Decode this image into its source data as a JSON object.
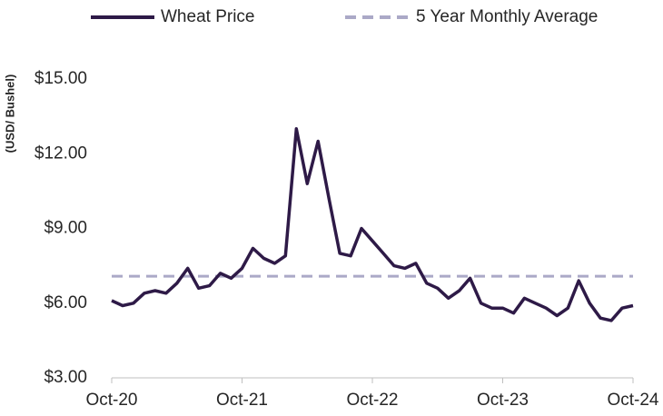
{
  "chart_data": {
    "type": "line",
    "y_axis_label": "(USD/ Bushel)",
    "x": [
      "Oct-20",
      "Nov-20",
      "Dec-20",
      "Jan-21",
      "Feb-21",
      "Mar-21",
      "Apr-21",
      "May-21",
      "Jun-21",
      "Jul-21",
      "Aug-21",
      "Sep-21",
      "Oct-21",
      "Nov-21",
      "Dec-21",
      "Jan-22",
      "Feb-22",
      "Mar-22",
      "Apr-22",
      "May-22",
      "Jun-22",
      "Jul-22",
      "Aug-22",
      "Sep-22",
      "Oct-22",
      "Nov-22",
      "Dec-22",
      "Jan-23",
      "Feb-23",
      "Mar-23",
      "Apr-23",
      "May-23",
      "Jun-23",
      "Jul-23",
      "Aug-23",
      "Sep-23",
      "Oct-23",
      "Nov-23",
      "Dec-23",
      "Jan-24",
      "Feb-24",
      "Mar-24",
      "Apr-24",
      "May-24",
      "Jun-24",
      "Jul-24",
      "Aug-24",
      "Sep-24",
      "Oct-24"
    ],
    "series": [
      {
        "name": "Wheat Price",
        "color": "#2e1a47",
        "values": [
          6.1,
          5.9,
          6.0,
          6.4,
          6.5,
          6.4,
          6.8,
          7.4,
          6.6,
          6.7,
          7.2,
          7.0,
          7.4,
          8.2,
          7.8,
          7.6,
          7.9,
          13.0,
          10.8,
          12.5,
          10.2,
          8.0,
          7.9,
          9.0,
          8.5,
          8.0,
          7.5,
          7.4,
          7.6,
          6.8,
          6.6,
          6.2,
          6.5,
          7.0,
          6.0,
          5.8,
          5.8,
          5.6,
          6.2,
          6.0,
          5.8,
          5.5,
          5.8,
          6.9,
          6.0,
          5.4,
          5.3,
          5.8,
          5.9
        ]
      }
    ],
    "reference_line": {
      "name": "5 Year Monthly Average",
      "value": 7.08,
      "color": "#aba9c7",
      "dashed": true
    },
    "xticks": [
      "Oct-20",
      "Oct-21",
      "Oct-22",
      "Oct-23",
      "Oct-24"
    ],
    "ylim": [
      3,
      15
    ],
    "yticks": [
      {
        "value": 3,
        "label": "$3.00"
      },
      {
        "value": 6,
        "label": "$6.00"
      },
      {
        "value": 9,
        "label": "$9.00"
      },
      {
        "value": 12,
        "label": "$12.00"
      },
      {
        "value": 15,
        "label": "$15.00"
      }
    ],
    "grid": false,
    "legend": "top"
  }
}
